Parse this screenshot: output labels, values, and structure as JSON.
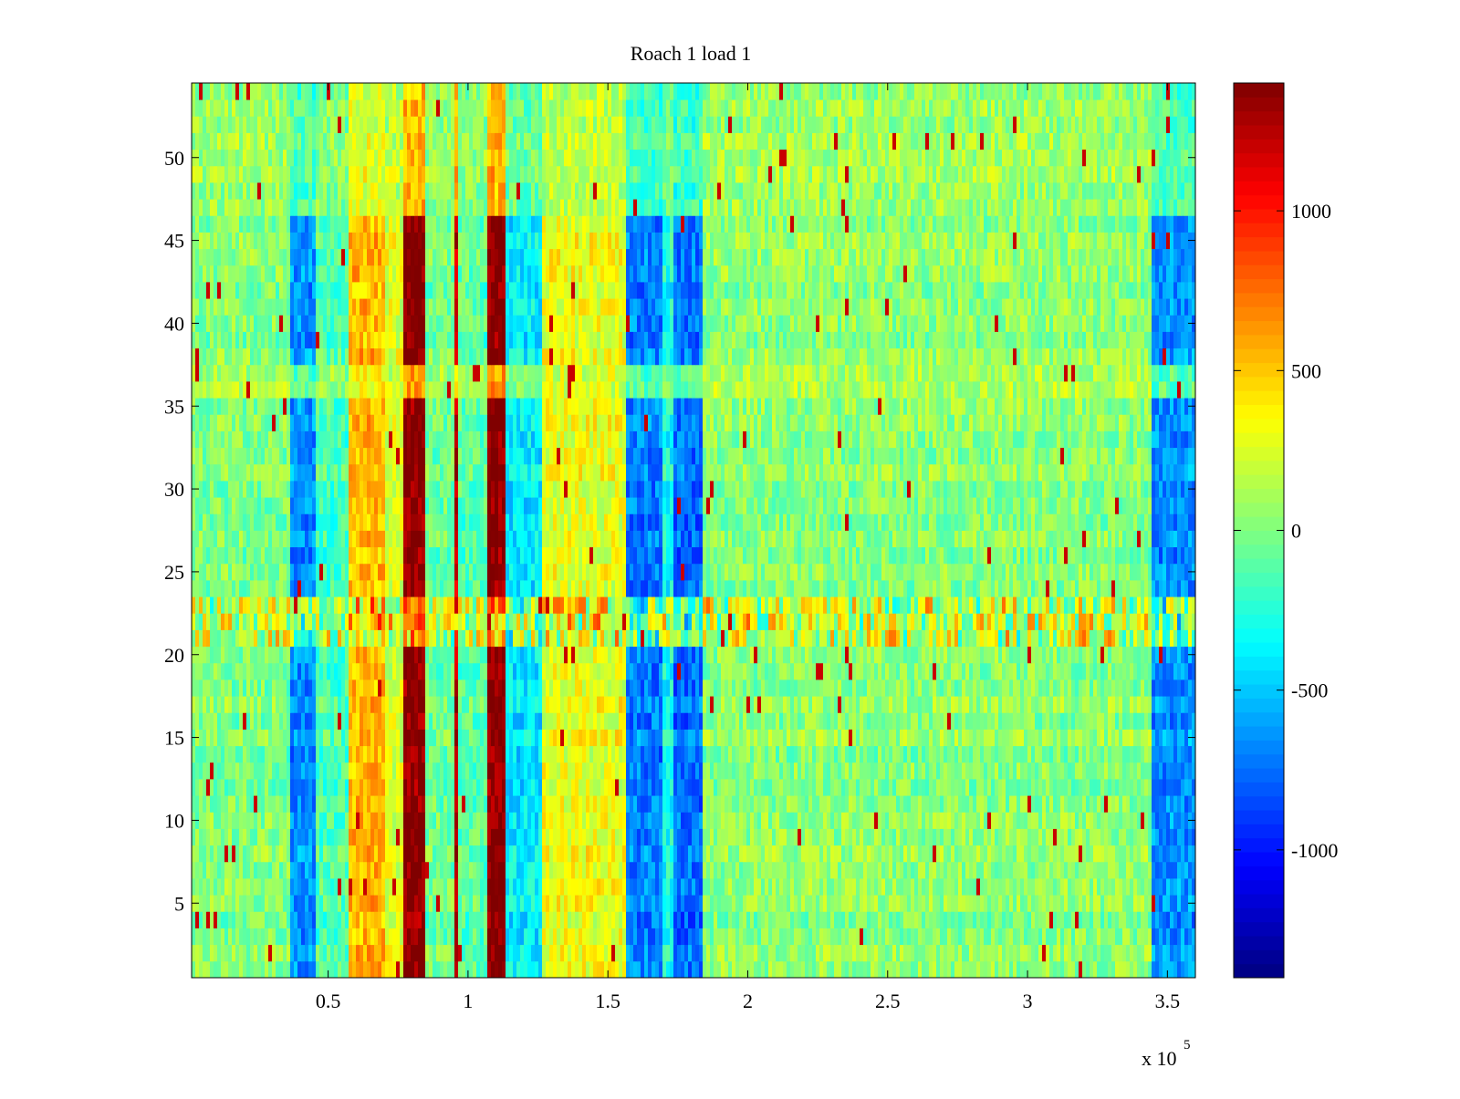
{
  "chart_data": {
    "type": "heatmap",
    "title": "Roach 1 load 1",
    "xlabel": "",
    "ylabel": "",
    "x_multiplier_label": "x 10",
    "x_multiplier_exponent": "5",
    "xlim": [
      1200,
      360000
    ],
    "ylim": [
      0.5,
      54.5
    ],
    "x_ticks": [
      {
        "value": 50000,
        "label": "0.5"
      },
      {
        "value": 100000,
        "label": "1"
      },
      {
        "value": 150000,
        "label": "1.5"
      },
      {
        "value": 200000,
        "label": "2"
      },
      {
        "value": 250000,
        "label": "2.5"
      },
      {
        "value": 300000,
        "label": "3"
      },
      {
        "value": 350000,
        "label": "3.5"
      }
    ],
    "y_ticks": [
      {
        "value": 5,
        "label": "5"
      },
      {
        "value": 10,
        "label": "10"
      },
      {
        "value": 15,
        "label": "15"
      },
      {
        "value": 20,
        "label": "20"
      },
      {
        "value": 25,
        "label": "25"
      },
      {
        "value": 30,
        "label": "30"
      },
      {
        "value": 35,
        "label": "35"
      },
      {
        "value": 40,
        "label": "40"
      },
      {
        "value": 45,
        "label": "45"
      },
      {
        "value": 50,
        "label": "50"
      }
    ],
    "rows": 54,
    "colormap": "jet",
    "clim": [
      -1400,
      1400
    ],
    "colorbar_ticks": [
      {
        "value": 1000,
        "label": "1000"
      },
      {
        "value": 500,
        "label": "500"
      },
      {
        "value": 0,
        "label": "0"
      },
      {
        "value": -500,
        "label": "-500"
      },
      {
        "value": -1000,
        "label": "-1000"
      }
    ],
    "colorbar_location": "right",
    "grid": false,
    "column_bands": [
      {
        "x": [
          1200,
          36000
        ],
        "value": 0
      },
      {
        "x": [
          36000,
          45000
        ],
        "value": -650
      },
      {
        "x": [
          45000,
          57000
        ],
        "value": -150
      },
      {
        "x": [
          57000,
          70000
        ],
        "value": 550
      },
      {
        "x": [
          70000,
          77000
        ],
        "value": 250
      },
      {
        "x": [
          77000,
          85000
        ],
        "value": 1400
      },
      {
        "x": [
          85000,
          95000
        ],
        "value": -50
      },
      {
        "x": [
          95000,
          97000
        ],
        "value": 1200
      },
      {
        "x": [
          97000,
          107000
        ],
        "value": -100
      },
      {
        "x": [
          107000,
          114000
        ],
        "value": 1400
      },
      {
        "x": [
          114000,
          126000
        ],
        "value": -400
      },
      {
        "x": [
          126000,
          157000
        ],
        "value": 300
      },
      {
        "x": [
          157000,
          169000
        ],
        "value": -700
      },
      {
        "x": [
          169000,
          174000
        ],
        "value": -300
      },
      {
        "x": [
          174000,
          184000
        ],
        "value": -750
      },
      {
        "x": [
          184000,
          344000
        ],
        "value": 30
      },
      {
        "x": [
          344000,
          360000
        ],
        "value": -650
      }
    ],
    "row_bands": [
      {
        "y": [
          1,
          20
        ],
        "effect": "full"
      },
      {
        "y": [
          21,
          23
        ],
        "value": 200
      },
      {
        "y": [
          24,
          35
        ],
        "effect": "full"
      },
      {
        "y": [
          36,
          37
        ],
        "effect": "weak"
      },
      {
        "y": [
          38,
          46
        ],
        "effect": "full"
      },
      {
        "y": [
          47,
          54
        ],
        "effect": "weak"
      }
    ]
  }
}
